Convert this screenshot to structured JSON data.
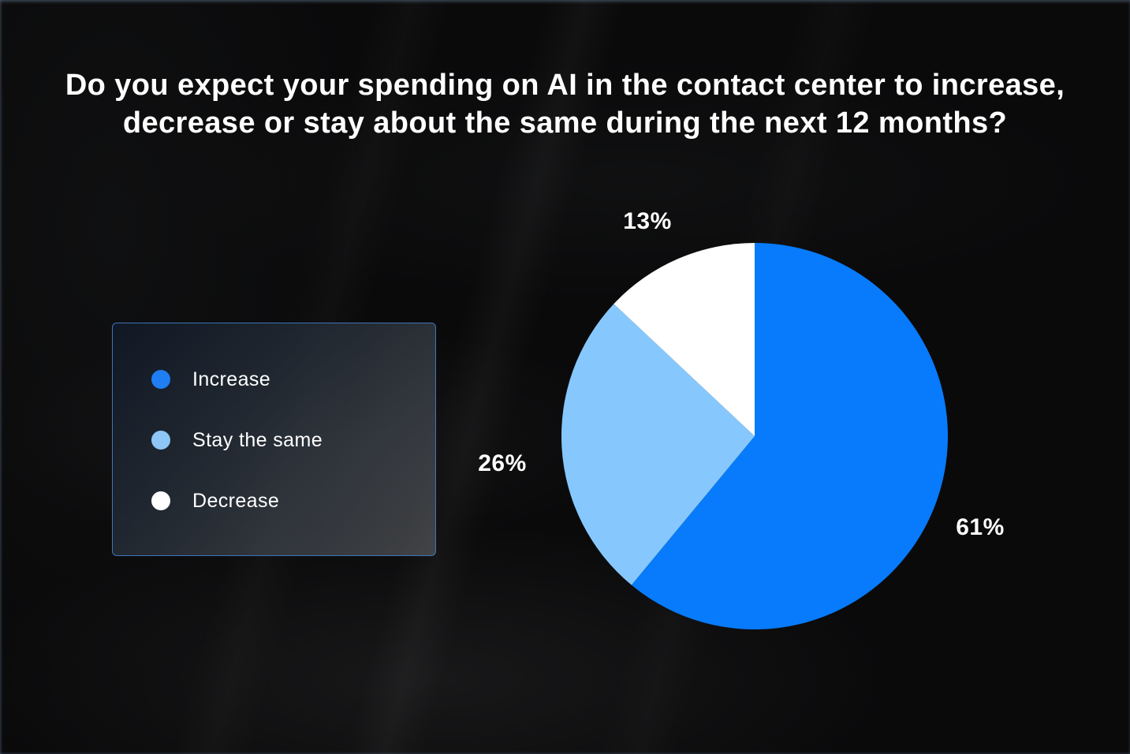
{
  "page": {
    "title_line1": "Do you expect your spending on AI in the contact center to increase,",
    "title_line2": "decrease or stay about the same during the next 12 months?"
  },
  "colors": {
    "background": "#0A0A0B",
    "accent_blue": "#077BFB",
    "light_blue": "#86C8FD",
    "white": "#FFFFFF",
    "legend_border": "#3F74B8",
    "legend_dot_blue": "#1E7EF2"
  },
  "legend": {
    "items": [
      {
        "label": "Increase",
        "color": "#1E7EF2"
      },
      {
        "label": "Stay the same",
        "color": "#8EC6F5"
      },
      {
        "label": "Decrease",
        "color": "#FFFFFF"
      }
    ]
  },
  "chart_data": {
    "type": "pie",
    "title": "Do you expect your spending on AI in the contact center to increase, decrease or stay about the same during the next 12 months?",
    "categories": [
      "Increase",
      "Stay the same",
      "Decrease"
    ],
    "values": [
      61,
      26,
      13
    ],
    "labels": [
      "61%",
      "26%",
      "13%"
    ],
    "colors": [
      "#077BFB",
      "#86C8FD",
      "#FFFFFF"
    ],
    "start_angle_deg": 0,
    "direction": "clockwise",
    "start_position": "12-oclock",
    "legend_position": "left",
    "label_position": "outside"
  }
}
